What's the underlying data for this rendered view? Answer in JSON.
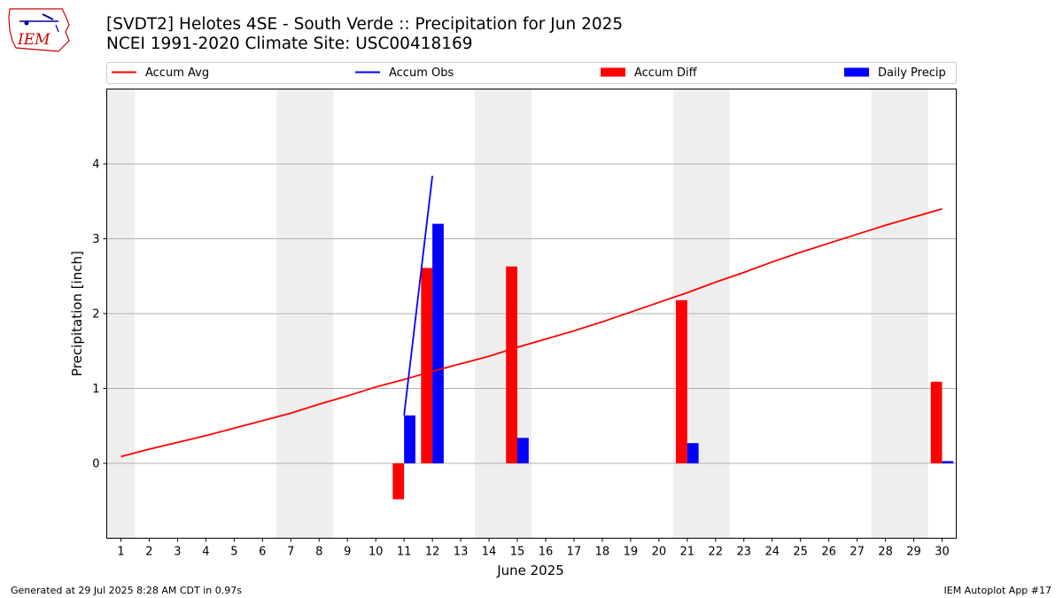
{
  "header": {
    "title_line1": "[SVDT2] Helotes 4SE - South Verde :: Precipitation for Jun 2025",
    "title_line2": "NCEI 1991-2020 Climate Site: USC00418169"
  },
  "logo": {
    "text": "IEM",
    "icon": "iem-iowa-logo-icon"
  },
  "footer": {
    "left": "Generated at 29 Jul 2025 8:28 AM CDT in 0.97s",
    "right": "IEM Autoplot App #17"
  },
  "chart_data": {
    "type": "bar",
    "xlabel": "June 2025",
    "ylabel": "Precipitation [inch]",
    "xlim": [
      0.5,
      30.5
    ],
    "ylim": [
      -1,
      5
    ],
    "yticks": [
      0,
      1,
      2,
      3,
      4
    ],
    "xticks": [
      1,
      2,
      3,
      4,
      5,
      6,
      7,
      8,
      9,
      10,
      11,
      12,
      13,
      14,
      15,
      16,
      17,
      18,
      19,
      20,
      21,
      22,
      23,
      24,
      25,
      26,
      27,
      28,
      29,
      30
    ],
    "grid": "horizontal",
    "legend_position": "top",
    "weekend_shading_color": "#eeeeee",
    "weekend_shading_days": [
      [
        1,
        1
      ],
      [
        7,
        8
      ],
      [
        14,
        15
      ],
      [
        21,
        22
      ],
      [
        28,
        29
      ]
    ],
    "legend": [
      {
        "label": "Accum Avg",
        "kind": "line",
        "color": "#ff0000"
      },
      {
        "label": "Accum Obs",
        "kind": "line",
        "color": "#0000ff"
      },
      {
        "label": "Accum Diff",
        "kind": "bar",
        "color": "#ff0000"
      },
      {
        "label": "Daily Precip",
        "kind": "bar",
        "color": "#0000ff"
      }
    ],
    "accum_avg": {
      "days": [
        1,
        2,
        3,
        4,
        5,
        6,
        7,
        8,
        9,
        10,
        11,
        12,
        13,
        14,
        15,
        16,
        17,
        18,
        19,
        20,
        21,
        22,
        23,
        24,
        25,
        26,
        27,
        28,
        29,
        30
      ],
      "values": [
        0.09,
        0.19,
        0.28,
        0.37,
        0.47,
        0.57,
        0.67,
        0.79,
        0.9,
        1.02,
        1.12,
        1.23,
        1.33,
        1.43,
        1.55,
        1.66,
        1.77,
        1.89,
        2.02,
        2.15,
        2.28,
        2.42,
        2.55,
        2.69,
        2.82,
        2.94,
        3.06,
        3.18,
        3.29,
        3.4
      ]
    },
    "accum_obs": {
      "days": [
        11,
        12
      ],
      "values": [
        0.64,
        3.84
      ]
    },
    "accum_diff": {
      "days": [
        11,
        12,
        15,
        21,
        30
      ],
      "values": [
        -0.48,
        2.61,
        2.63,
        2.18,
        1.09
      ]
    },
    "daily_precip": {
      "days": [
        11,
        12,
        15,
        21,
        30
      ],
      "values": [
        0.64,
        3.2,
        0.34,
        0.27,
        0.03
      ]
    }
  }
}
